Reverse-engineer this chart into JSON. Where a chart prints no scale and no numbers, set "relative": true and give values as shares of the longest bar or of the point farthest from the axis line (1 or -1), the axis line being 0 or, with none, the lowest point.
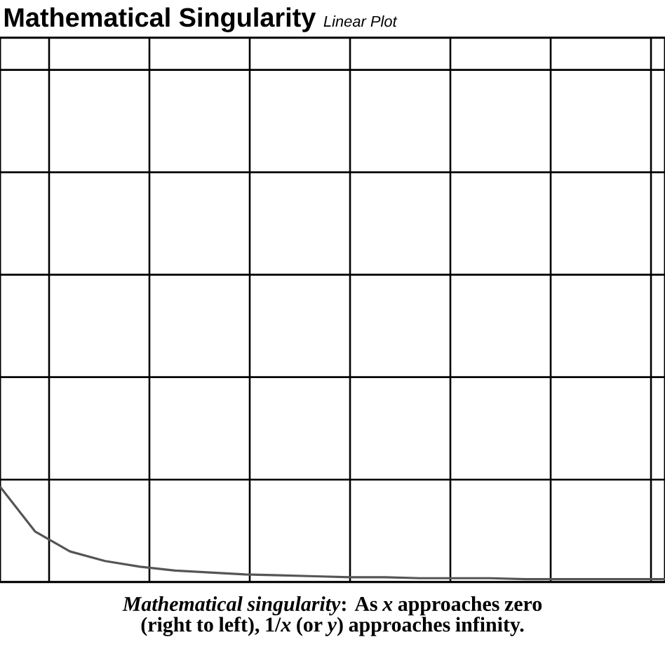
{
  "chart_data": {
    "type": "line",
    "title": "Mathematical Singularity",
    "subtitle": "Linear Plot",
    "annotations": [
      "*Mathematical singularity*: As *x* approaches zero (right to left), 1/*x* (or *y*) approaches infinity."
    ],
    "categories": [
      null,
      null,
      null,
      null,
      null,
      null,
      null,
      null,
      null,
      null,
      null,
      null,
      null,
      null,
      null,
      null,
      null,
      null,
      null,
      null
    ],
    "series": [
      {
        "color": "#555555",
        "values": [
          1,
          0.53,
          0.32,
          0.22,
          0.16,
          0.12,
          0.1,
          0.08,
          0.07,
          0.06,
          0.05,
          0.05,
          0.04,
          0.04,
          0.04,
          0.03,
          0.03,
          0.03,
          0.03,
          0.03
        ]
      }
    ],
    "relative": true,
    "grid": true
  }
}
